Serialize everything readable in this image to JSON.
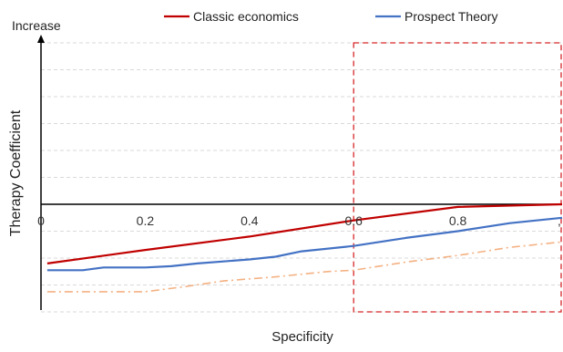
{
  "chart_data": {
    "type": "line",
    "xlabel": "Specificity",
    "ylabel": "Therapy Coefficient",
    "y_top_label": "Increase",
    "xlim": [
      0,
      1
    ],
    "ylim": [
      -4,
      7
    ],
    "x_ticks": [
      0,
      0.2,
      0.4,
      0.6,
      0.8
    ],
    "x_tick_labels": [
      "0",
      "0.2",
      "0.4",
      "0.6",
      "0.8"
    ],
    "x_tick_label_trailing": ",",
    "grid": true,
    "grid_style": "dashed horizontal",
    "legend_position": "top",
    "highlight_region": {
      "x_start": 0.6,
      "x_end": 1,
      "y_start": -4,
      "y_end": 6,
      "color": "#d62728",
      "style": "dashed"
    },
    "series": [
      {
        "name": "Classic economics",
        "color": "#c00000",
        "style": "solid",
        "in_legend": true,
        "points": [
          [
            0,
            -2.2
          ],
          [
            0.2,
            -1.7
          ],
          [
            0.4,
            -1.2
          ],
          [
            0.6,
            -0.6
          ],
          [
            0.8,
            -0.1
          ],
          [
            1.0,
            0.0
          ]
        ]
      },
      {
        "name": "Prospect Theory",
        "color": "#4472c4",
        "style": "solid",
        "in_legend": true,
        "points": [
          [
            0,
            -2.45
          ],
          [
            0.08,
            -2.45
          ],
          [
            0.12,
            -2.35
          ],
          [
            0.2,
            -2.35
          ],
          [
            0.25,
            -2.3
          ],
          [
            0.3,
            -2.2
          ],
          [
            0.4,
            -2.05
          ],
          [
            0.45,
            -1.95
          ],
          [
            0.5,
            -1.75
          ],
          [
            0.6,
            -1.55
          ],
          [
            0.7,
            -1.25
          ],
          [
            0.8,
            -1.0
          ],
          [
            0.9,
            -0.7
          ],
          [
            1.0,
            -0.5
          ]
        ]
      },
      {
        "name": "",
        "color": "#f4b183",
        "style": "dashdot",
        "in_legend": false,
        "points": [
          [
            0,
            -3.25
          ],
          [
            0.1,
            -3.25
          ],
          [
            0.2,
            -3.25
          ],
          [
            0.28,
            -3.05
          ],
          [
            0.35,
            -2.85
          ],
          [
            0.45,
            -2.7
          ],
          [
            0.55,
            -2.5
          ],
          [
            0.6,
            -2.45
          ],
          [
            0.7,
            -2.15
          ],
          [
            0.8,
            -1.9
          ],
          [
            0.9,
            -1.6
          ],
          [
            1.0,
            -1.4
          ]
        ]
      }
    ]
  }
}
